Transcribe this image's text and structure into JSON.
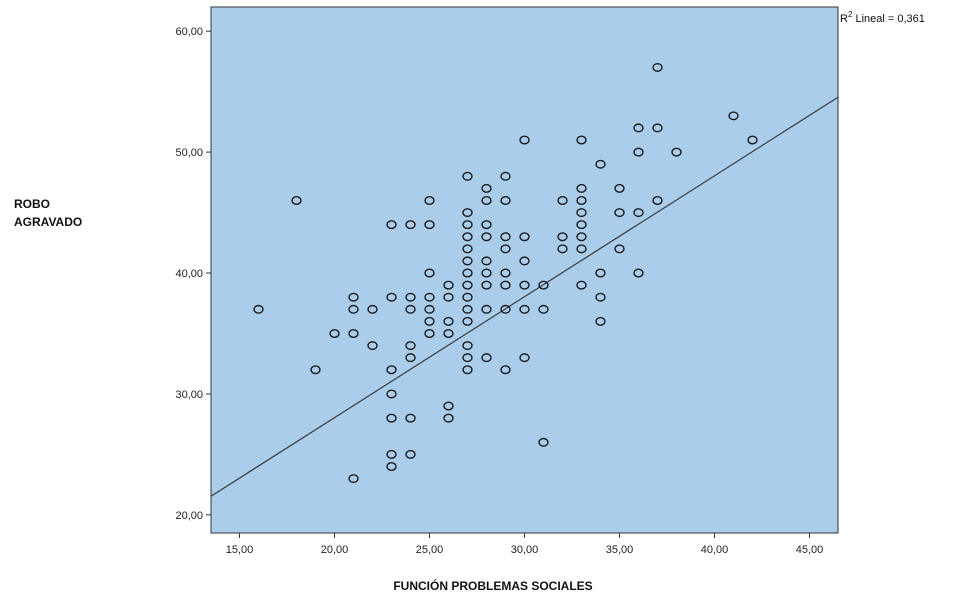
{
  "chart_data": {
    "type": "scatter",
    "xlabel": "FUNCIÓN PROBLEMAS SOCIALES",
    "ylabel_lines": [
      "ROBO",
      "AGRAVADO"
    ],
    "xlim": [
      13.5,
      46.5
    ],
    "ylim": [
      18.5,
      62.0
    ],
    "x_ticks": [
      15,
      20,
      25,
      30,
      35,
      40,
      45
    ],
    "x_tick_labels": [
      "15,00",
      "20,00",
      "25,00",
      "30,00",
      "35,00",
      "40,00",
      "45,00"
    ],
    "y_ticks": [
      20,
      30,
      40,
      50,
      60
    ],
    "y_tick_labels": [
      "20,00",
      "30,00",
      "40,00",
      "50,00",
      "60,00"
    ],
    "grid": false,
    "plot_background": "#abcdec",
    "marker_color": "#1a1a1a",
    "line_color": "#3a3a3a",
    "fit_line": {
      "intercept": 8.04,
      "slope": 1.0,
      "r2_sup": "2",
      "r2_label_prefix": "R",
      "r2_label_suffix": " Lineal = 0,361"
    },
    "points": [
      [
        16,
        37
      ],
      [
        18,
        46
      ],
      [
        19,
        32
      ],
      [
        20,
        35
      ],
      [
        21,
        38
      ],
      [
        21,
        37
      ],
      [
        21,
        35
      ],
      [
        21,
        23
      ],
      [
        22,
        37
      ],
      [
        22,
        34
      ],
      [
        23,
        44
      ],
      [
        23,
        38
      ],
      [
        23,
        32
      ],
      [
        23,
        30
      ],
      [
        23,
        28
      ],
      [
        23,
        25
      ],
      [
        23,
        24
      ],
      [
        24,
        44
      ],
      [
        24,
        38
      ],
      [
        24,
        37
      ],
      [
        24,
        34
      ],
      [
        24,
        33
      ],
      [
        24,
        28
      ],
      [
        24,
        25
      ],
      [
        25,
        46
      ],
      [
        25,
        44
      ],
      [
        25,
        40
      ],
      [
        25,
        38
      ],
      [
        25,
        37
      ],
      [
        25,
        36
      ],
      [
        25,
        35
      ],
      [
        26,
        39
      ],
      [
        26,
        38
      ],
      [
        26,
        36
      ],
      [
        26,
        35
      ],
      [
        26,
        29
      ],
      [
        26,
        28
      ],
      [
        27,
        48
      ],
      [
        27,
        45
      ],
      [
        27,
        44
      ],
      [
        27,
        43
      ],
      [
        27,
        42
      ],
      [
        27,
        41
      ],
      [
        27,
        40
      ],
      [
        27,
        39
      ],
      [
        27,
        38
      ],
      [
        27,
        37
      ],
      [
        27,
        36
      ],
      [
        27,
        34
      ],
      [
        27,
        33
      ],
      [
        27,
        32
      ],
      [
        28,
        47
      ],
      [
        28,
        46
      ],
      [
        28,
        44
      ],
      [
        28,
        43
      ],
      [
        28,
        41
      ],
      [
        28,
        40
      ],
      [
        28,
        39
      ],
      [
        28,
        37
      ],
      [
        28,
        33
      ],
      [
        29,
        48
      ],
      [
        29,
        46
      ],
      [
        29,
        43
      ],
      [
        29,
        42
      ],
      [
        29,
        40
      ],
      [
        29,
        39
      ],
      [
        29,
        37
      ],
      [
        29,
        32
      ],
      [
        30,
        51
      ],
      [
        30,
        43
      ],
      [
        30,
        41
      ],
      [
        30,
        39
      ],
      [
        30,
        37
      ],
      [
        30,
        33
      ],
      [
        31,
        39
      ],
      [
        31,
        37
      ],
      [
        31,
        26
      ],
      [
        32,
        46
      ],
      [
        32,
        43
      ],
      [
        32,
        42
      ],
      [
        33,
        51
      ],
      [
        33,
        47
      ],
      [
        33,
        46
      ],
      [
        33,
        45
      ],
      [
        33,
        44
      ],
      [
        33,
        43
      ],
      [
        33,
        42
      ],
      [
        33,
        39
      ],
      [
        34,
        49
      ],
      [
        34,
        40
      ],
      [
        34,
        38
      ],
      [
        34,
        36
      ],
      [
        35,
        47
      ],
      [
        35,
        45
      ],
      [
        35,
        42
      ],
      [
        36,
        52
      ],
      [
        36,
        50
      ],
      [
        36,
        45
      ],
      [
        36,
        40
      ],
      [
        37,
        57
      ],
      [
        37,
        52
      ],
      [
        37,
        46
      ],
      [
        38,
        50
      ],
      [
        41,
        53
      ],
      [
        42,
        51
      ]
    ]
  }
}
